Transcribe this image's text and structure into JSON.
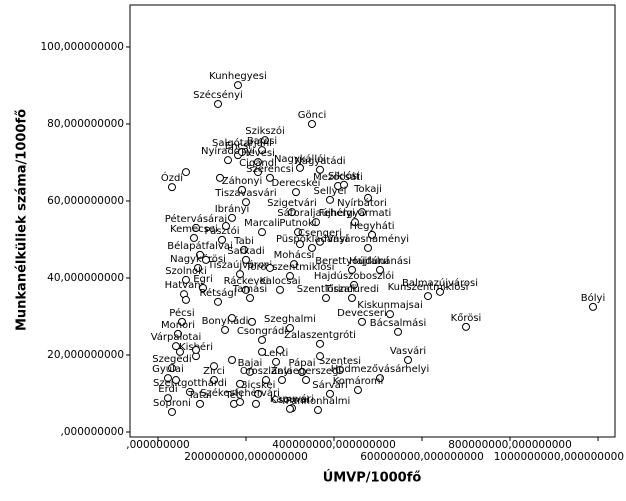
{
  "chart_data": {
    "type": "scatter",
    "x_label": "ÚMVP/1000fő",
    "y_label": "Munkanélküliek száma/1000fő",
    "xlim": [
      -63600000,
      1038600000
    ],
    "ylim": [
      -1.3,
      110.9
    ],
    "xticks": [
      {
        "value": 0,
        "label": ",000000000"
      },
      {
        "value": 200000000,
        "label": "200000000,000000000"
      },
      {
        "value": 400000000,
        "label": "400000000,000000000"
      },
      {
        "value": 600000000,
        "label": "600000000,000000000"
      },
      {
        "value": 800000000,
        "label": "800000000,000000000"
      },
      {
        "value": 1000000000,
        "label": "1000000000,000000000"
      }
    ],
    "yticks": [
      {
        "value": 0,
        "label": ",000000000"
      },
      {
        "value": 20,
        "label": "20,000000000"
      },
      {
        "value": 40,
        "label": "40,000000000"
      },
      {
        "value": 60,
        "label": "60,000000000"
      },
      {
        "value": 80,
        "label": "80,000000000"
      },
      {
        "value": 100,
        "label": "100,000000000"
      }
    ],
    "marker_color": "#000000",
    "labels": [
      "Kunhegyesi",
      "Szécsényi",
      "Encsi",
      "Gönci",
      "Szikszói",
      "Nyíradonyi",
      "Salgótarjáni",
      "Barcsi",
      "Nagykállói",
      "Hevesi",
      "Cigándi",
      "Szerencsi",
      "Nagyatádi",
      "Mezőcsáti",
      "Siklósi",
      "Ózdi",
      "Záhonyi",
      "Derecskei",
      "Tokaji",
      "Sellyei",
      "Tiszavasvári",
      "Nyírbátori",
      "Szigetvári",
      "Ibrányi",
      "Sátoraljaújhelyi",
      "Pétervásárai",
      "Fehérgyarmati",
      "Marcali",
      "Putnoki",
      "Hegyháti",
      "Kemecsei",
      "Pásztói",
      "Csengeri",
      "Tabi",
      "Vásárosnaményi",
      "Püspökladányi",
      "Bélapátfalvai",
      "Sarkadi",
      "Mohácsi",
      "Berettyóújfalui",
      "Nagykőrösi",
      "Hajdúnánási",
      "Tiszaújvárosi",
      "Törökszentmiklósi",
      "Szolnoki",
      "Hajdúszoboszlói",
      "Balmazújvárosi",
      "Hatvani",
      "Egri",
      "Ráckevei",
      "Kalocsai",
      "Szentlőrinci",
      "Tiszafüredi",
      "Kunszentmiklósi",
      "Bólyi",
      "Kiskunmajsai",
      "Kőrösi",
      "Pécsi",
      "Tamási",
      "Rétsági",
      "Monori",
      "Bonyhádi",
      "Szeghalmi",
      "Devecseri",
      "Bácsalmási",
      "Várpalotai",
      "Csongrádi",
      "Zalaszentgróti",
      "Kisbéri",
      "Vasvári",
      "Szegedi",
      "Lenti",
      "Szentesi",
      "Bajai",
      "Pápai",
      "Gyulai",
      "Oroszlányi",
      "Zalaegerszegi",
      "Hódmezővásárhelyi",
      "Zirci",
      "Komáromi",
      "Szentgotthárdi",
      "Bicskei",
      "Sárvári",
      "Érdi",
      "Tatai",
      "Téti",
      "Kapuvári",
      "Soproni",
      "Székesfehérvári",
      "Csornai",
      "Pannonhalmi",
      null,
      null,
      null,
      null,
      null,
      null,
      null,
      null,
      null,
      null,
      null,
      null,
      null,
      null,
      null,
      null,
      null,
      null,
      null,
      null
    ],
    "x": [
      181800000,
      136400000,
      181800000,
      350000000,
      243200000,
      159100000,
      190900000,
      236400000,
      322700000,
      227300000,
      227300000,
      254500000,
      368200000,
      409100000,
      422700000,
      31800000,
      190900000,
      313600000,
      477300000,
      390900000,
      200000000,
      463600000,
      304500000,
      168200000,
      359100000,
      86400000,
      447700000,
      236400000,
      318200000,
      486400000,
      81800000,
      145500000,
      368200000,
      195500000,
      477300000,
      350000000,
      95500000,
      200000000,
      309100000,
      440900000,
      90900000,
      504500000,
      186400000,
      300000000,
      63600000,
      445500000,
      640900000,
      59100000,
      102300000,
      200000000,
      277300000,
      381800000,
      440900000,
      613600000,
      988600000,
      527300000,
      700000000,
      54500000,
      209100000,
      136400000,
      45500000,
      152300000,
      300000000,
      463600000,
      545500000,
      40900000,
      236400000,
      368200000,
      86400000,
      568200000,
      31800000,
      268200000,
      413600000,
      209100000,
      327300000,
      22700000,
      245500000,
      336400000,
      504500000,
      127300000,
      454500000,
      72700000,
      227300000,
      390900000,
      22700000,
      95500000,
      172700000,
      304500000,
      31800000,
      186400000,
      300000000,
      363600000,
      63600000,
      140900000,
      63600000,
      109100000,
      168200000,
      213600000,
      86400000,
      50000000,
      127300000,
      168200000,
      236400000,
      277300000,
      186400000,
      222700000,
      40900000,
      254500000,
      154500000,
      322700000,
      281800000,
      368200000
    ],
    "values": [
      90.1,
      85.2,
      71.9,
      80.0,
      75.8,
      70.6,
      72.7,
      73.2,
      68.6,
      70.1,
      67.5,
      66.0,
      68.1,
      63.9,
      64.2,
      63.6,
      62.9,
      62.3,
      60.8,
      60.3,
      59.7,
      57.1,
      57.1,
      55.6,
      54.5,
      53.0,
      54.5,
      51.9,
      51.9,
      51.2,
      50.4,
      49.9,
      49.4,
      47.3,
      47.8,
      47.8,
      46.0,
      44.7,
      43.6,
      42.1,
      42.6,
      42.1,
      41.0,
      40.5,
      39.5,
      38.2,
      36.4,
      35.8,
      37.4,
      36.9,
      36.9,
      34.8,
      34.8,
      35.3,
      32.5,
      30.6,
      27.3,
      28.6,
      34.8,
      33.8,
      25.5,
      26.5,
      27.0,
      28.6,
      26.0,
      22.3,
      23.9,
      22.9,
      19.7,
      18.7,
      16.6,
      18.2,
      16.1,
      15.6,
      15.6,
      14.0,
      13.5,
      13.5,
      14.0,
      13.5,
      10.9,
      10.4,
      9.9,
      9.9,
      8.8,
      7.3,
      7.3,
      6.2,
      5.2,
      7.8,
      6.0,
      5.7,
      67.5,
      66.0,
      34.3,
      44.7,
      29.6,
      28.6,
      21.3,
      20.8,
      17.1,
      18.7,
      20.8,
      21.3,
      12.5,
      7.3,
      13.5,
      42.6,
      53.5,
      48.8,
      13.5,
      19.7
    ]
  }
}
